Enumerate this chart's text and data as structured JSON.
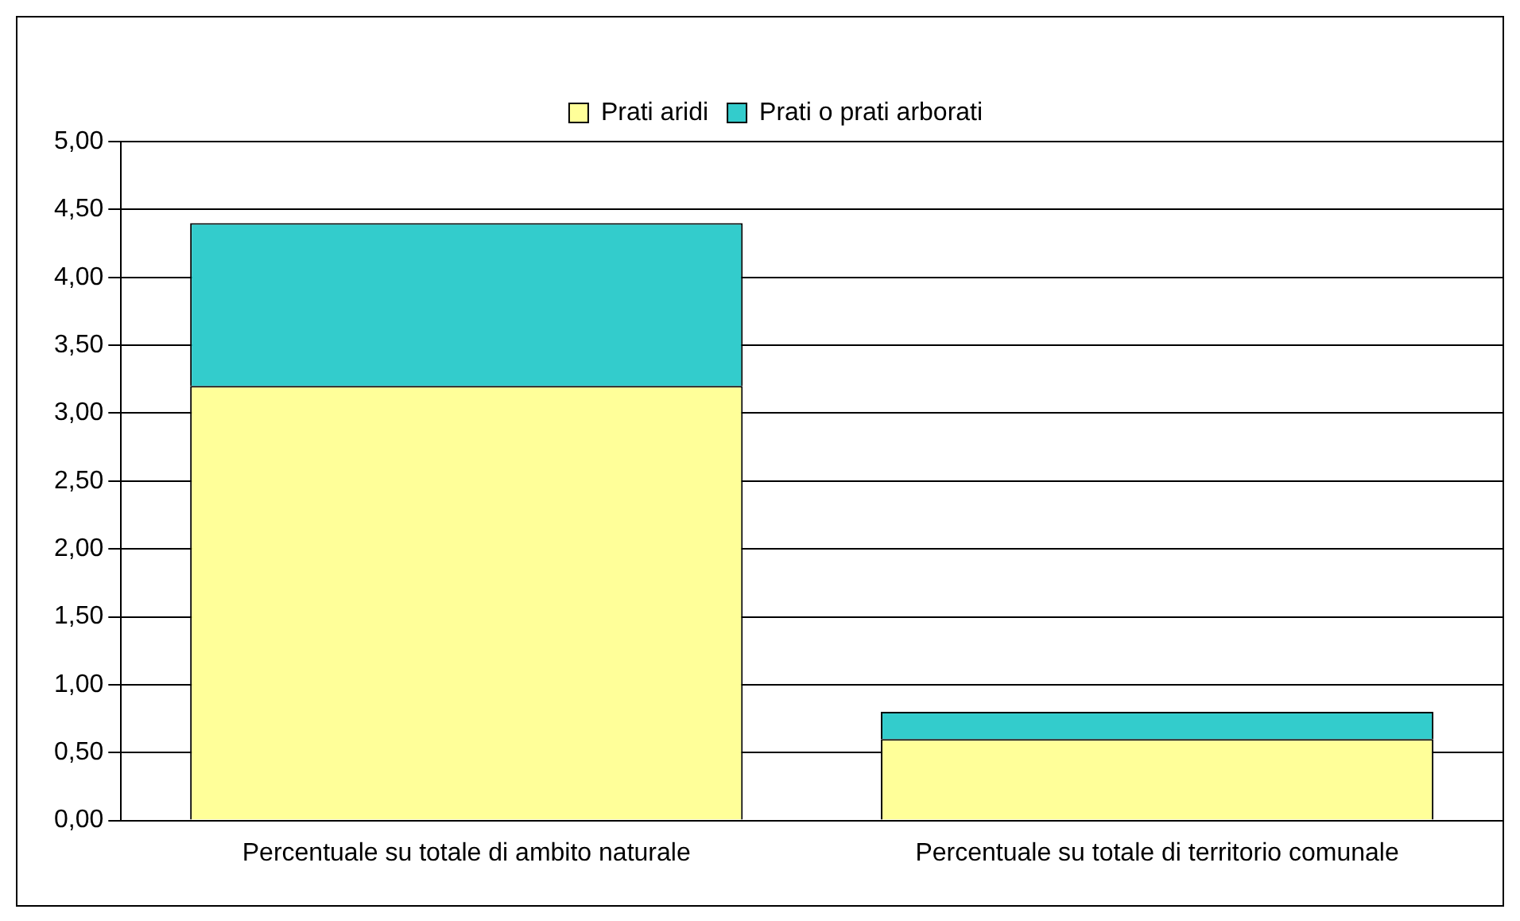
{
  "chart_data": {
    "type": "bar",
    "stacked": true,
    "categories": [
      "Percentuale su totale di ambito naturale",
      "Percentuale su totale di territorio comunale"
    ],
    "series": [
      {
        "name": "Prati aridi",
        "color": "#ffff99",
        "values": [
          3.2,
          0.6
        ]
      },
      {
        "name": "Prati o prati arborati",
        "color": "#33cccc",
        "values": [
          1.2,
          0.2
        ]
      }
    ],
    "ylim": [
      0,
      5
    ],
    "yticks": [
      {
        "value": 0,
        "label": "0,00"
      },
      {
        "value": 0.5,
        "label": "0,50"
      },
      {
        "value": 1,
        "label": "1,00"
      },
      {
        "value": 1.5,
        "label": "1,50"
      },
      {
        "value": 2,
        "label": "2,00"
      },
      {
        "value": 2.5,
        "label": "2,50"
      },
      {
        "value": 3,
        "label": "3,00"
      },
      {
        "value": 3.5,
        "label": "3,50"
      },
      {
        "value": 4,
        "label": "4,00"
      },
      {
        "value": 4.5,
        "label": "4,50"
      },
      {
        "value": 5,
        "label": "5,00"
      }
    ],
    "grid": "y",
    "legend": "top"
  }
}
